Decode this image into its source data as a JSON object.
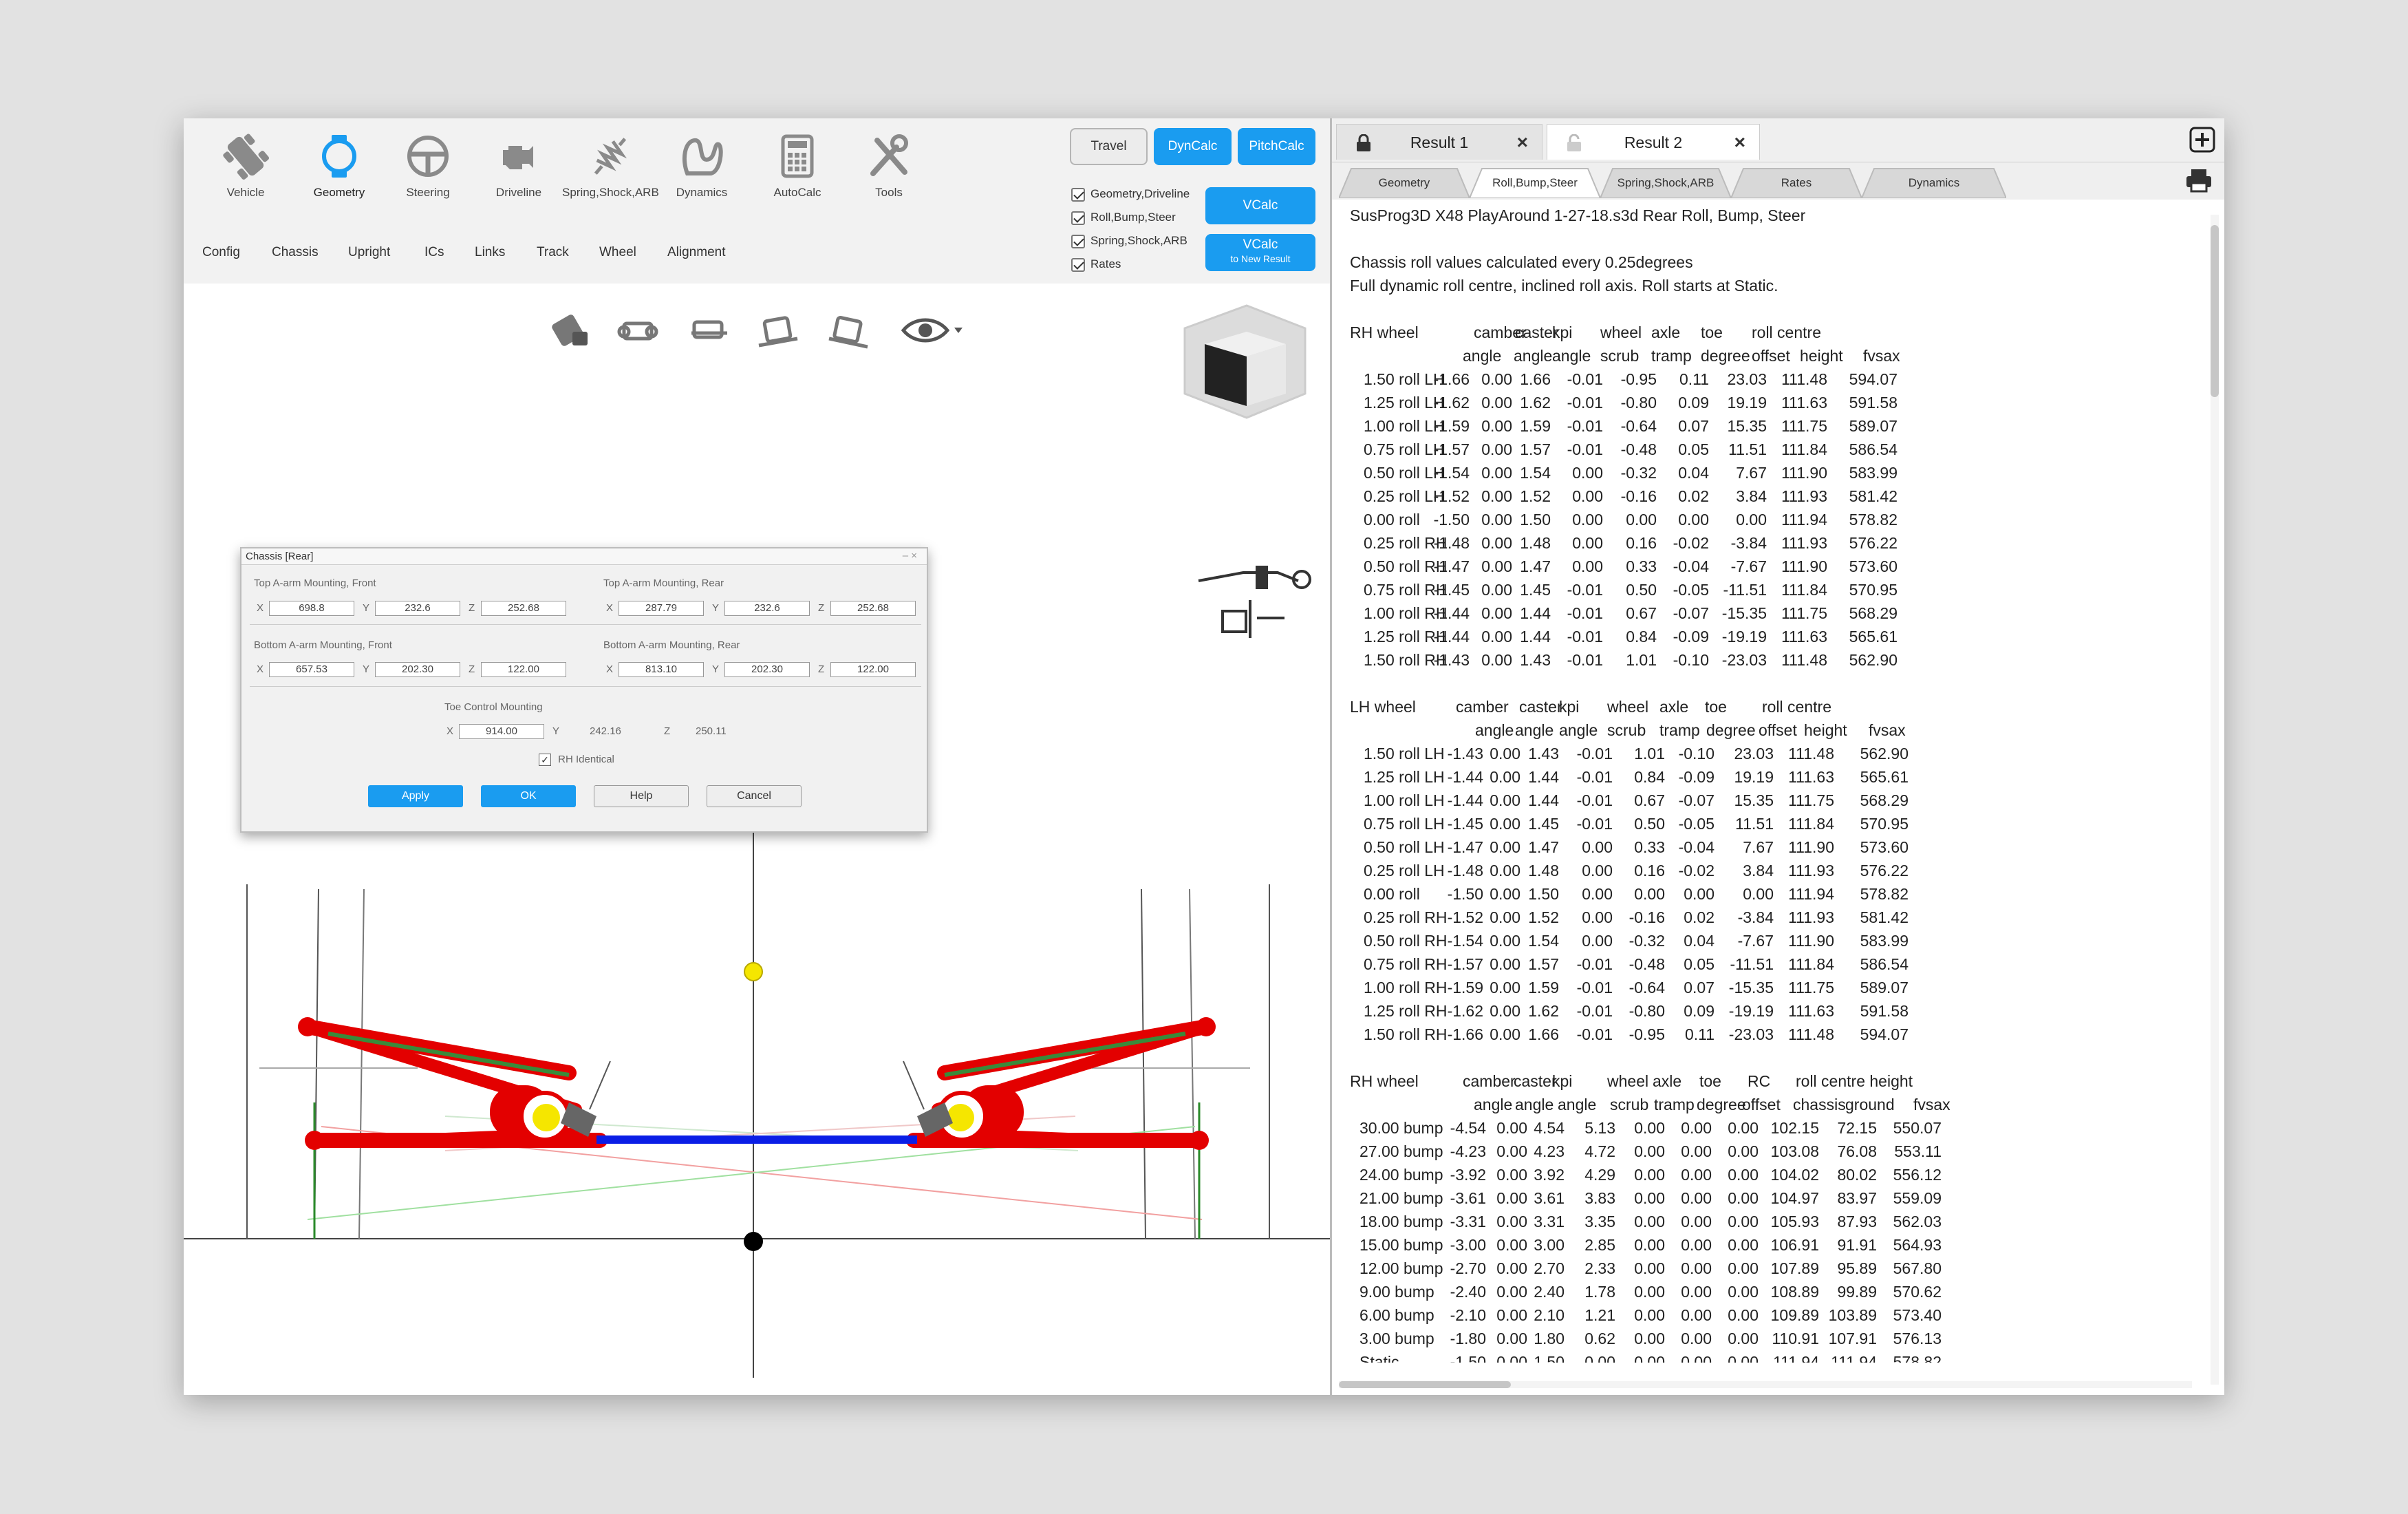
{
  "toolbar": {
    "tools": [
      {
        "label": "Vehicle",
        "icon": "vehicle-icon"
      },
      {
        "label": "Geometry",
        "icon": "geometry-icon"
      },
      {
        "label": "Steering",
        "icon": "steering-wheel-icon"
      },
      {
        "label": "Driveline",
        "icon": "engine-icon"
      },
      {
        "label": "Spring,Shock,ARB",
        "icon": "spring-shock-icon"
      },
      {
        "label": "Dynamics",
        "icon": "track-icon"
      },
      {
        "label": "AutoCalc",
        "icon": "calculator-icon"
      },
      {
        "label": "Tools",
        "icon": "tools-icon"
      }
    ],
    "subtabs": [
      "Config",
      "Chassis",
      "Upright",
      "ICs",
      "Links",
      "Track",
      "Wheel",
      "Alignment"
    ],
    "travel_label": "Travel",
    "dyncalc_label": "DynCalc",
    "pitchcalc_label": "PitchCalc",
    "vcalc_label": "VCalc",
    "vcalc2_label": "VCalc",
    "vcalc2_sub": "to New Result",
    "checks": [
      "Geometry,Driveline",
      "Roll,Bump,Steer",
      "Spring,Shock,ARB",
      "Rates"
    ],
    "accent": "#1a9cf0"
  },
  "dialog": {
    "title": "Chassis [Rear]",
    "top_front_label": "Top A-arm Mounting, Front",
    "top_rear_label": "Top A-arm Mounting, Rear",
    "bottom_front_label": "Bottom A-arm Mounting, Front",
    "bottom_rear_label": "Bottom A-arm Mounting, Rear",
    "toe_label": "Toe Control Mounting",
    "axis_x": "X",
    "axis_y": "Y",
    "axis_z": "Z",
    "top_front": {
      "x": "698.8",
      "y": "232.6",
      "z": "252.68"
    },
    "top_rear": {
      "x": "287.79",
      "y": "232.6",
      "z": "252.68"
    },
    "bottom_front": {
      "x": "657.53",
      "y": "202.30",
      "z": "122.00"
    },
    "bottom_rear": {
      "x": "813.10",
      "y": "202.30",
      "z": "122.00"
    },
    "toe": {
      "x": "914.00",
      "y": "242.16",
      "z": "250.11"
    },
    "rh_identical": "RH Identical",
    "apply": "Apply",
    "ok": "OK",
    "help": "Help",
    "cancel": "Cancel"
  },
  "results": {
    "tabs": [
      "Result 1",
      "Result 2"
    ],
    "sections": [
      "Geometry",
      "Roll,Bump,Steer",
      "Spring,Shock,ARB",
      "Rates",
      "Dynamics"
    ],
    "header": "SusProg3D X48 PlayAround 1-27-18.s3d Rear Roll, Bump, Steer",
    "note1": "Chassis roll values calculated every 0.25degrees",
    "note2": "Full dynamic roll centre, inclined roll axis. Roll starts at Static.",
    "rh_roll": {
      "title": "RH wheel",
      "head1": [
        "camber",
        "caster",
        "kpi",
        "wheel",
        "axle",
        "toe",
        "roll centre",
        ""
      ],
      "head2": [
        "angle",
        "angle",
        "angle",
        "scrub",
        "tramp",
        "degree",
        "offset",
        "height",
        "fvsax"
      ],
      "rows": [
        [
          "1.50 roll LH",
          "-1.66",
          "0.00",
          "1.66",
          "-0.01",
          "-0.95",
          "0.11",
          "23.03",
          "111.48",
          "594.07"
        ],
        [
          "1.25 roll LH",
          "-1.62",
          "0.00",
          "1.62",
          "-0.01",
          "-0.80",
          "0.09",
          "19.19",
          "111.63",
          "591.58"
        ],
        [
          "1.00 roll LH",
          "-1.59",
          "0.00",
          "1.59",
          "-0.01",
          "-0.64",
          "0.07",
          "15.35",
          "111.75",
          "589.07"
        ],
        [
          "0.75 roll LH",
          "-1.57",
          "0.00",
          "1.57",
          "-0.01",
          "-0.48",
          "0.05",
          "11.51",
          "111.84",
          "586.54"
        ],
        [
          "0.50 roll LH",
          "-1.54",
          "0.00",
          "1.54",
          "0.00",
          "-0.32",
          "0.04",
          "7.67",
          "111.90",
          "583.99"
        ],
        [
          "0.25 roll LH",
          "-1.52",
          "0.00",
          "1.52",
          "0.00",
          "-0.16",
          "0.02",
          "3.84",
          "111.93",
          "581.42"
        ],
        [
          "0.00 roll",
          "-1.50",
          "0.00",
          "1.50",
          "0.00",
          "0.00",
          "0.00",
          "0.00",
          "111.94",
          "578.82"
        ],
        [
          "0.25 roll RH",
          "-1.48",
          "0.00",
          "1.48",
          "0.00",
          "0.16",
          "-0.02",
          "-3.84",
          "111.93",
          "576.22"
        ],
        [
          "0.50 roll RH",
          "-1.47",
          "0.00",
          "1.47",
          "0.00",
          "0.33",
          "-0.04",
          "-7.67",
          "111.90",
          "573.60"
        ],
        [
          "0.75 roll RH",
          "-1.45",
          "0.00",
          "1.45",
          "-0.01",
          "0.50",
          "-0.05",
          "-11.51",
          "111.84",
          "570.95"
        ],
        [
          "1.00 roll RH",
          "-1.44",
          "0.00",
          "1.44",
          "-0.01",
          "0.67",
          "-0.07",
          "-15.35",
          "111.75",
          "568.29"
        ],
        [
          "1.25 roll RH",
          "-1.44",
          "0.00",
          "1.44",
          "-0.01",
          "0.84",
          "-0.09",
          "-19.19",
          "111.63",
          "565.61"
        ],
        [
          "1.50 roll RH",
          "-1.43",
          "0.00",
          "1.43",
          "-0.01",
          "1.01",
          "-0.10",
          "-23.03",
          "111.48",
          "562.90"
        ]
      ]
    },
    "lh_roll": {
      "title": "LH wheel",
      "head1": [
        "camber",
        "caster",
        "kpi",
        "wheel",
        "axle",
        "toe",
        "roll centre",
        ""
      ],
      "head2": [
        "angle",
        "angle",
        "angle",
        "scrub",
        "tramp",
        "degree",
        "offset",
        "height",
        "fvsax"
      ],
      "rows": [
        [
          "1.50 roll LH",
          "-1.43",
          "0.00",
          "1.43",
          "-0.01",
          "1.01",
          "-0.10",
          "23.03",
          "111.48",
          "562.90"
        ],
        [
          "1.25 roll LH",
          "-1.44",
          "0.00",
          "1.44",
          "-0.01",
          "0.84",
          "-0.09",
          "19.19",
          "111.63",
          "565.61"
        ],
        [
          "1.00 roll LH",
          "-1.44",
          "0.00",
          "1.44",
          "-0.01",
          "0.67",
          "-0.07",
          "15.35",
          "111.75",
          "568.29"
        ],
        [
          "0.75 roll LH",
          "-1.45",
          "0.00",
          "1.45",
          "-0.01",
          "0.50",
          "-0.05",
          "11.51",
          "111.84",
          "570.95"
        ],
        [
          "0.50 roll LH",
          "-1.47",
          "0.00",
          "1.47",
          "0.00",
          "0.33",
          "-0.04",
          "7.67",
          "111.90",
          "573.60"
        ],
        [
          "0.25 roll LH",
          "-1.48",
          "0.00",
          "1.48",
          "0.00",
          "0.16",
          "-0.02",
          "3.84",
          "111.93",
          "576.22"
        ],
        [
          "0.00 roll",
          "-1.50",
          "0.00",
          "1.50",
          "0.00",
          "0.00",
          "0.00",
          "0.00",
          "111.94",
          "578.82"
        ],
        [
          "0.25 roll RH",
          "-1.52",
          "0.00",
          "1.52",
          "0.00",
          "-0.16",
          "0.02",
          "-3.84",
          "111.93",
          "581.42"
        ],
        [
          "0.50 roll RH",
          "-1.54",
          "0.00",
          "1.54",
          "0.00",
          "-0.32",
          "0.04",
          "-7.67",
          "111.90",
          "583.99"
        ],
        [
          "0.75 roll RH",
          "-1.57",
          "0.00",
          "1.57",
          "-0.01",
          "-0.48",
          "0.05",
          "-11.51",
          "111.84",
          "586.54"
        ],
        [
          "1.00 roll RH",
          "-1.59",
          "0.00",
          "1.59",
          "-0.01",
          "-0.64",
          "0.07",
          "-15.35",
          "111.75",
          "589.07"
        ],
        [
          "1.25 roll RH",
          "-1.62",
          "0.00",
          "1.62",
          "-0.01",
          "-0.80",
          "0.09",
          "-19.19",
          "111.63",
          "591.58"
        ],
        [
          "1.50 roll RH",
          "-1.66",
          "0.00",
          "1.66",
          "-0.01",
          "-0.95",
          "0.11",
          "-23.03",
          "111.48",
          "594.07"
        ]
      ]
    },
    "rh_bump": {
      "title": "RH wheel",
      "head1": [
        "camber",
        "caster",
        "kpi",
        "wheel",
        "axle",
        "toe",
        "RC",
        "roll centre height",
        ""
      ],
      "head2": [
        "angle",
        "angle",
        "angle",
        "scrub",
        "tramp",
        "degree",
        "offset",
        "chassis",
        "ground",
        "fvsax"
      ],
      "rows": [
        [
          "30.00 bump",
          "-4.54",
          "0.00",
          "4.54",
          "5.13",
          "0.00",
          "0.00",
          "0.00",
          "102.15",
          "72.15",
          "550.07"
        ],
        [
          "27.00 bump",
          "-4.23",
          "0.00",
          "4.23",
          "4.72",
          "0.00",
          "0.00",
          "0.00",
          "103.08",
          "76.08",
          "553.11"
        ],
        [
          "24.00 bump",
          "-3.92",
          "0.00",
          "3.92",
          "4.29",
          "0.00",
          "0.00",
          "0.00",
          "104.02",
          "80.02",
          "556.12"
        ],
        [
          "21.00 bump",
          "-3.61",
          "0.00",
          "3.61",
          "3.83",
          "0.00",
          "0.00",
          "0.00",
          "104.97",
          "83.97",
          "559.09"
        ],
        [
          "18.00 bump",
          "-3.31",
          "0.00",
          "3.31",
          "3.35",
          "0.00",
          "0.00",
          "0.00",
          "105.93",
          "87.93",
          "562.03"
        ],
        [
          "15.00 bump",
          "-3.00",
          "0.00",
          "3.00",
          "2.85",
          "0.00",
          "0.00",
          "0.00",
          "106.91",
          "91.91",
          "564.93"
        ],
        [
          "12.00 bump",
          "-2.70",
          "0.00",
          "2.70",
          "2.33",
          "0.00",
          "0.00",
          "0.00",
          "107.89",
          "95.89",
          "567.80"
        ],
        [
          "9.00 bump",
          "-2.40",
          "0.00",
          "2.40",
          "1.78",
          "0.00",
          "0.00",
          "0.00",
          "108.89",
          "99.89",
          "570.62"
        ],
        [
          "6.00 bump",
          "-2.10",
          "0.00",
          "2.10",
          "1.21",
          "0.00",
          "0.00",
          "0.00",
          "109.89",
          "103.89",
          "573.40"
        ],
        [
          "3.00 bump",
          "-1.80",
          "0.00",
          "1.80",
          "0.62",
          "0.00",
          "0.00",
          "0.00",
          "110.91",
          "107.91",
          "576.13"
        ],
        [
          "Static",
          "-1.50",
          "0.00",
          "1.50",
          "0.00",
          "0.00",
          "0.00",
          "0.00",
          "111.94",
          "111.94",
          "578.82"
        ]
      ]
    }
  }
}
